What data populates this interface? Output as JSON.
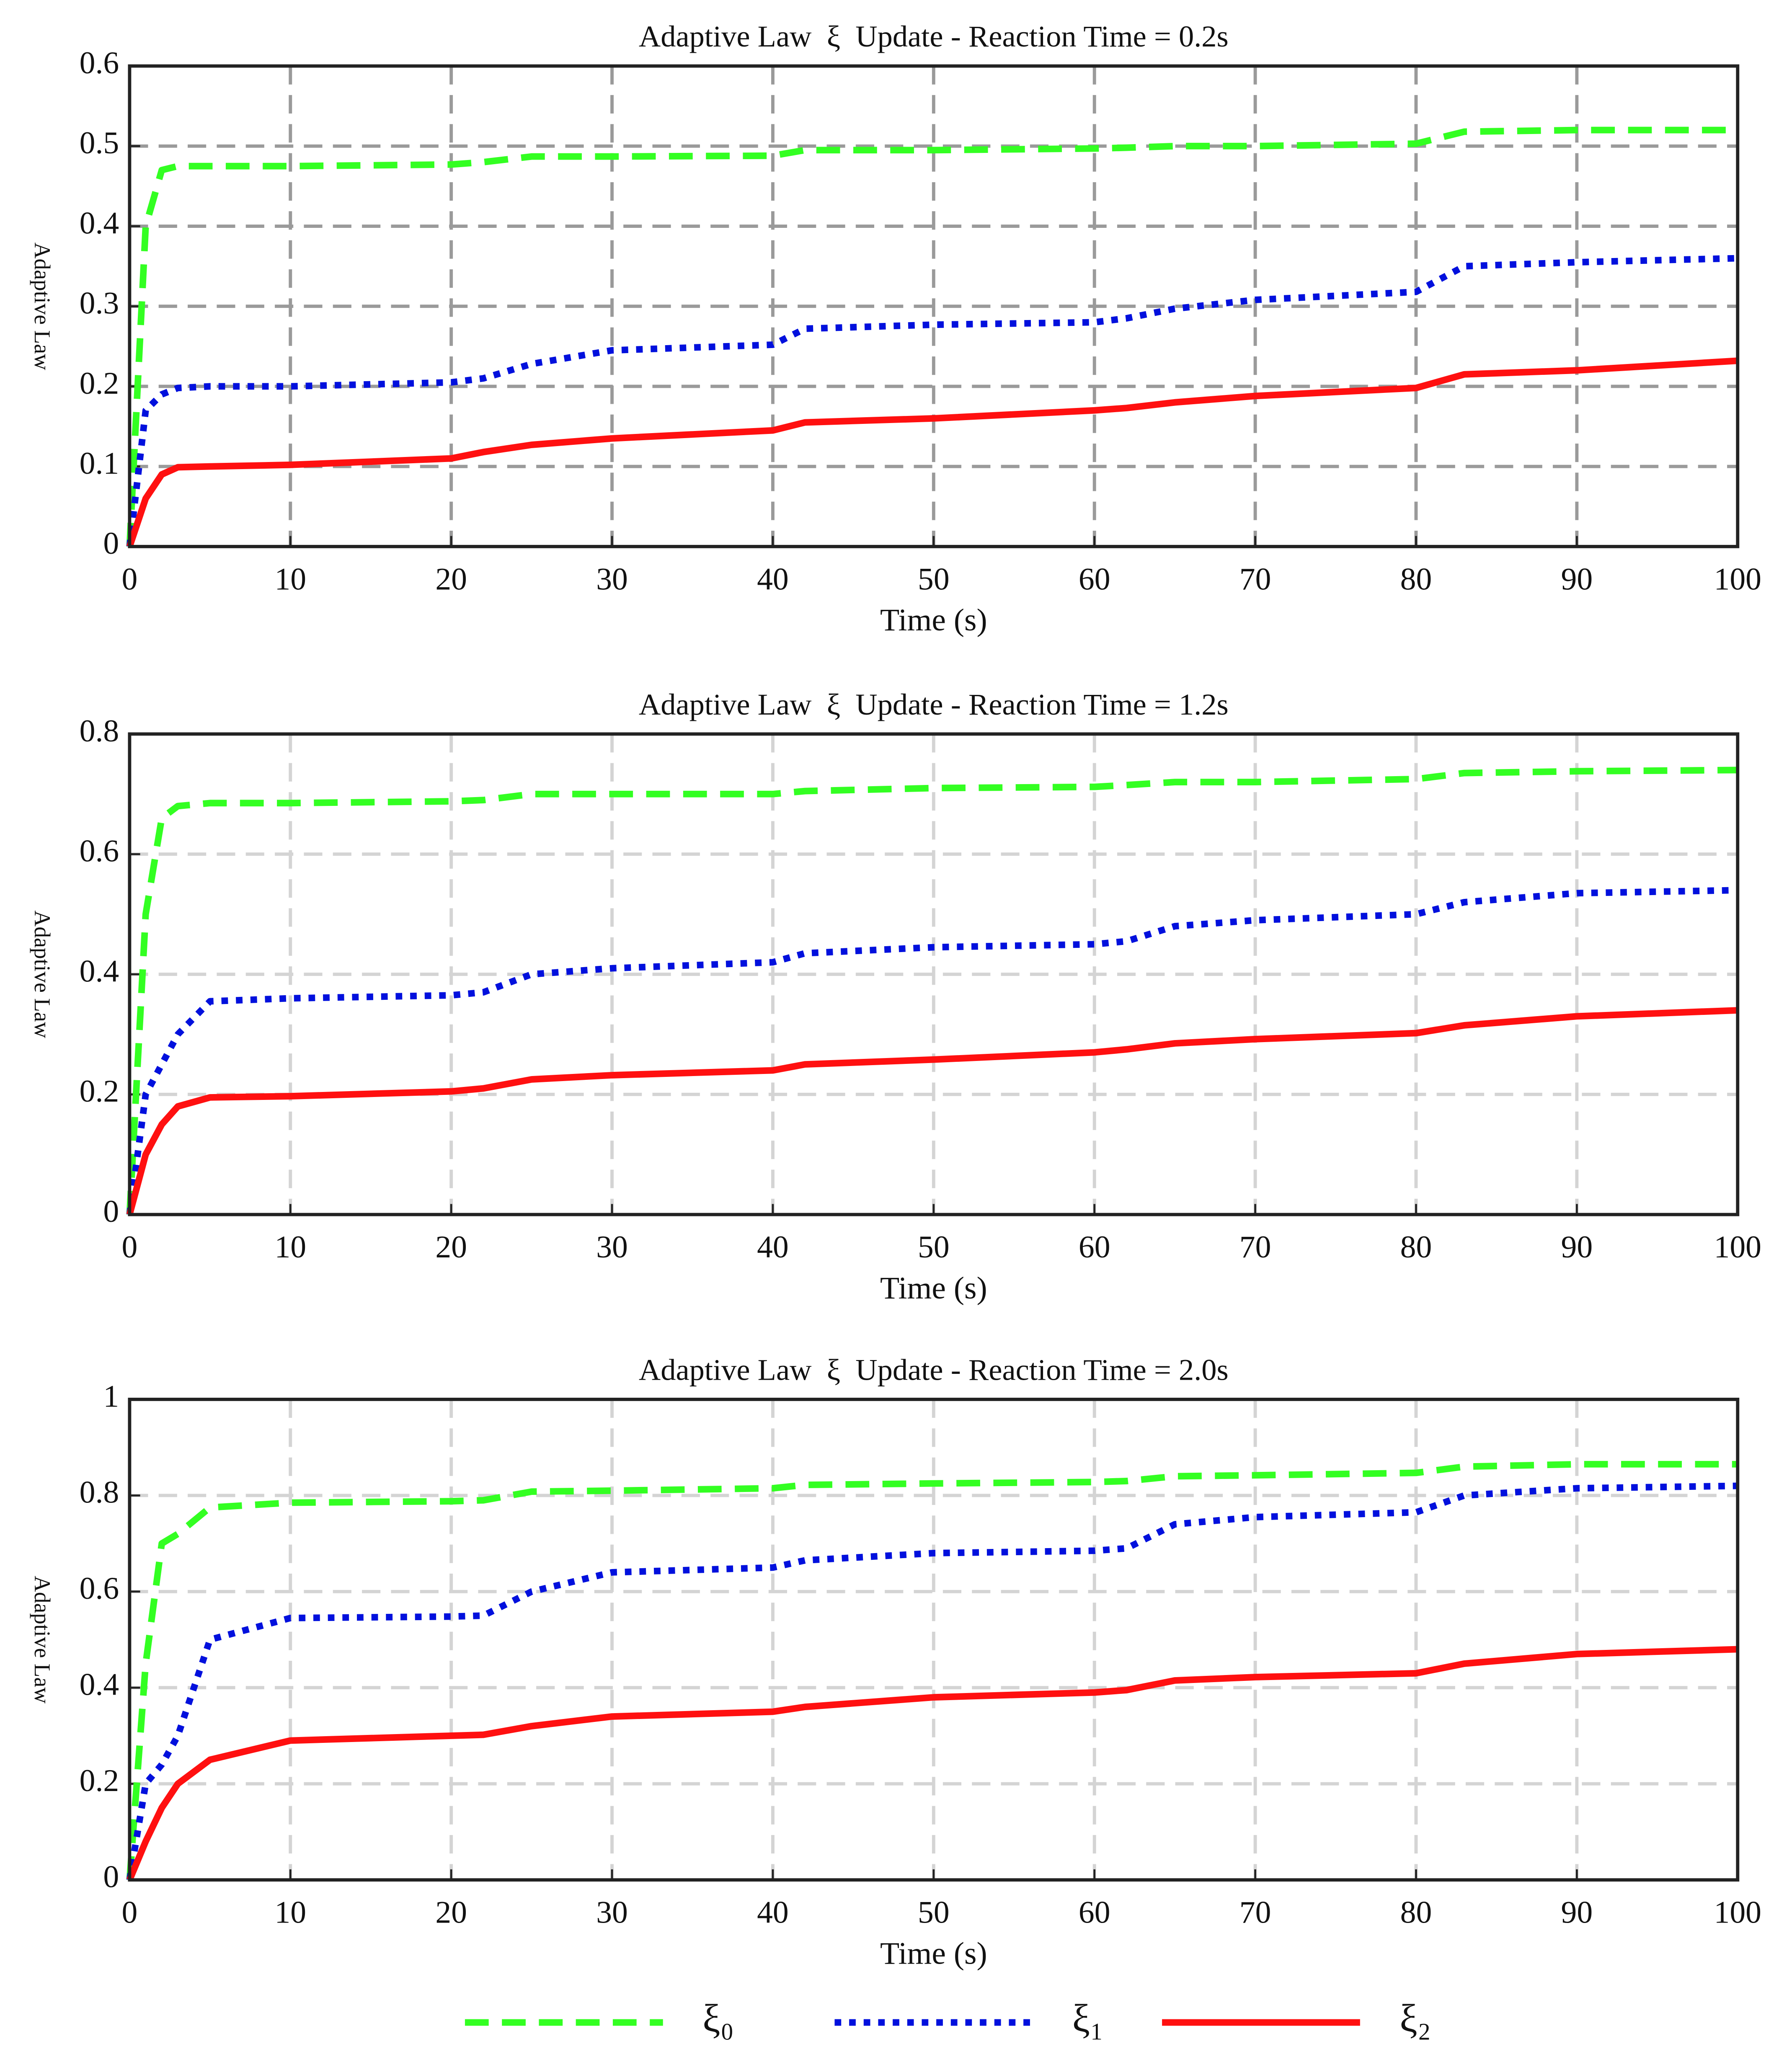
{
  "chart_data": [
    {
      "type": "line",
      "title": "Adaptive Law  ξ  Update - Reaction Time = 0.2s",
      "x_label": "Time (s)",
      "y_label": "Adaptive Law",
      "x": [
        0,
        1,
        2,
        3,
        5,
        10,
        20,
        22,
        25,
        30,
        40,
        42,
        50,
        60,
        62,
        65,
        70,
        80,
        83,
        90,
        100
      ],
      "series": [
        {
          "name": "ξ₀",
          "color": "#33ff22",
          "values": [
            0,
            0.4,
            0.47,
            0.475,
            0.475,
            0.475,
            0.477,
            0.48,
            0.487,
            0.487,
            0.488,
            0.495,
            0.495,
            0.497,
            0.498,
            0.5,
            0.5,
            0.503,
            0.518,
            0.52,
            0.52
          ]
        },
        {
          "name": "ξ₁",
          "color": "#0010dd",
          "values": [
            0,
            0.17,
            0.19,
            0.198,
            0.2,
            0.2,
            0.205,
            0.21,
            0.228,
            0.245,
            0.252,
            0.272,
            0.277,
            0.28,
            0.285,
            0.297,
            0.308,
            0.318,
            0.35,
            0.355,
            0.36
          ]
        },
        {
          "name": "ξ₂",
          "color": "#ff1010",
          "values": [
            0,
            0.06,
            0.09,
            0.099,
            0.1,
            0.102,
            0.11,
            0.118,
            0.127,
            0.135,
            0.145,
            0.155,
            0.16,
            0.17,
            0.173,
            0.18,
            0.188,
            0.198,
            0.215,
            0.22,
            0.232
          ]
        }
      ],
      "xlim": [
        0,
        100
      ],
      "xticks": [
        0,
        10,
        20,
        30,
        40,
        50,
        60,
        70,
        80,
        90,
        100
      ],
      "ylim": [
        0,
        0.6
      ],
      "yticks": [
        0,
        0.1,
        0.2,
        0.3,
        0.4,
        0.5,
        0.6
      ],
      "grid": true,
      "grid_color": "#9a9a9a"
    },
    {
      "type": "line",
      "title": "Adaptive Law  ξ  Update - Reaction Time = 1.2s",
      "x_label": "Time (s)",
      "y_label": "Adaptive Law",
      "x": [
        0,
        1,
        2,
        3,
        5,
        10,
        20,
        22,
        25,
        30,
        40,
        42,
        50,
        60,
        62,
        65,
        70,
        80,
        83,
        90,
        100
      ],
      "series": [
        {
          "name": "ξ₀",
          "color": "#33ff22",
          "values": [
            0,
            0.5,
            0.66,
            0.68,
            0.685,
            0.685,
            0.688,
            0.69,
            0.7,
            0.7,
            0.7,
            0.705,
            0.71,
            0.712,
            0.715,
            0.72,
            0.72,
            0.725,
            0.735,
            0.738,
            0.74
          ]
        },
        {
          "name": "ξ₁",
          "color": "#0010dd",
          "values": [
            0,
            0.2,
            0.25,
            0.3,
            0.355,
            0.36,
            0.365,
            0.37,
            0.4,
            0.41,
            0.42,
            0.435,
            0.445,
            0.45,
            0.455,
            0.48,
            0.49,
            0.5,
            0.52,
            0.535,
            0.54
          ]
        },
        {
          "name": "ξ₂",
          "color": "#ff1010",
          "values": [
            0,
            0.1,
            0.15,
            0.18,
            0.195,
            0.197,
            0.205,
            0.21,
            0.225,
            0.232,
            0.24,
            0.25,
            0.258,
            0.27,
            0.275,
            0.285,
            0.292,
            0.302,
            0.315,
            0.33,
            0.34
          ]
        }
      ],
      "xlim": [
        0,
        100
      ],
      "xticks": [
        0,
        10,
        20,
        30,
        40,
        50,
        60,
        70,
        80,
        90,
        100
      ],
      "ylim": [
        0,
        0.8
      ],
      "yticks": [
        0,
        0.2,
        0.4,
        0.6,
        0.8
      ],
      "grid": true,
      "grid_color": "#d4d4d4"
    },
    {
      "type": "line",
      "title": "Adaptive Law  ξ  Update - Reaction Time = 2.0s",
      "x_label": "Time (s)",
      "y_label": "Adaptive Law",
      "x": [
        0,
        1,
        2,
        3,
        5,
        10,
        20,
        22,
        25,
        30,
        40,
        42,
        50,
        60,
        62,
        65,
        70,
        80,
        83,
        90,
        100
      ],
      "series": [
        {
          "name": "ξ₀",
          "color": "#33ff22",
          "values": [
            0,
            0.45,
            0.7,
            0.72,
            0.775,
            0.785,
            0.788,
            0.79,
            0.808,
            0.81,
            0.815,
            0.822,
            0.825,
            0.828,
            0.83,
            0.84,
            0.842,
            0.847,
            0.86,
            0.865,
            0.865
          ]
        },
        {
          "name": "ξ₁",
          "color": "#0010dd",
          "values": [
            0,
            0.2,
            0.24,
            0.3,
            0.5,
            0.545,
            0.548,
            0.55,
            0.6,
            0.64,
            0.65,
            0.665,
            0.68,
            0.685,
            0.69,
            0.74,
            0.755,
            0.765,
            0.8,
            0.815,
            0.82
          ]
        },
        {
          "name": "ξ₂",
          "color": "#ff1010",
          "values": [
            0,
            0.08,
            0.15,
            0.2,
            0.25,
            0.29,
            0.3,
            0.302,
            0.32,
            0.34,
            0.35,
            0.36,
            0.38,
            0.39,
            0.395,
            0.415,
            0.422,
            0.43,
            0.45,
            0.47,
            0.48
          ]
        }
      ],
      "xlim": [
        0,
        100
      ],
      "xticks": [
        0,
        10,
        20,
        30,
        40,
        50,
        60,
        70,
        80,
        90,
        100
      ],
      "ylim": [
        0,
        1
      ],
      "yticks": [
        0,
        0.2,
        0.4,
        0.6,
        0.8,
        1
      ],
      "grid": true,
      "grid_color": "#d4d4d4"
    }
  ]
}
